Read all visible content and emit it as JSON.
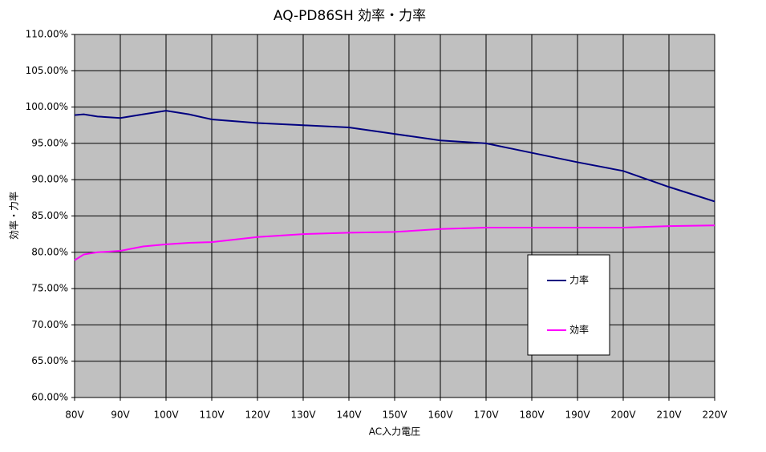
{
  "chart_data": {
    "type": "line",
    "title": "AQ-PD86SH 効率・力率",
    "x_label": "AC入力電圧",
    "y_label": "効率・力率",
    "x": [
      80,
      82,
      85,
      90,
      95,
      100,
      105,
      110,
      120,
      130,
      140,
      150,
      160,
      170,
      180,
      190,
      200,
      210,
      220
    ],
    "series": [
      {
        "name": "力率",
        "color": "#000080",
        "values": [
          98.9,
          99.0,
          98.7,
          98.5,
          99.0,
          99.5,
          99.0,
          98.3,
          97.8,
          97.5,
          97.2,
          96.3,
          95.4,
          95.0,
          93.7,
          92.4,
          91.2,
          89.0,
          87.0
        ]
      },
      {
        "name": "効率",
        "color": "#ff00ff",
        "values": [
          78.9,
          79.7,
          80.0,
          80.2,
          80.8,
          81.1,
          81.3,
          81.4,
          82.1,
          82.5,
          82.7,
          82.8,
          83.2,
          83.4,
          83.4,
          83.4,
          83.4,
          83.6,
          83.7
        ]
      }
    ],
    "xlim": [
      80,
      220
    ],
    "xticks": [
      {
        "value": 80,
        "label": "80V"
      },
      {
        "value": 90,
        "label": "90V"
      },
      {
        "value": 100,
        "label": "100V"
      },
      {
        "value": 110,
        "label": "110V"
      },
      {
        "value": 120,
        "label": "120V"
      },
      {
        "value": 130,
        "label": "130V"
      },
      {
        "value": 140,
        "label": "140V"
      },
      {
        "value": 150,
        "label": "150V"
      },
      {
        "value": 160,
        "label": "160V"
      },
      {
        "value": 170,
        "label": "170V"
      },
      {
        "value": 180,
        "label": "180V"
      },
      {
        "value": 190,
        "label": "190V"
      },
      {
        "value": 200,
        "label": "200V"
      },
      {
        "value": 210,
        "label": "210V"
      },
      {
        "value": 220,
        "label": "220V"
      }
    ],
    "ylim": [
      60,
      110
    ],
    "yticks": [
      {
        "value": 60,
        "label": "60.00%"
      },
      {
        "value": 65,
        "label": "65.00%"
      },
      {
        "value": 70,
        "label": "70.00%"
      },
      {
        "value": 75,
        "label": "75.00%"
      },
      {
        "value": 80,
        "label": "80.00%"
      },
      {
        "value": 85,
        "label": "85.00%"
      },
      {
        "value": 90,
        "label": "90.00%"
      },
      {
        "value": 95,
        "label": "95.00%"
      },
      {
        "value": 100,
        "label": "100.00%"
      },
      {
        "value": 105,
        "label": "105.00%"
      },
      {
        "value": 110,
        "label": "110.00%"
      }
    ],
    "grid": true
  }
}
